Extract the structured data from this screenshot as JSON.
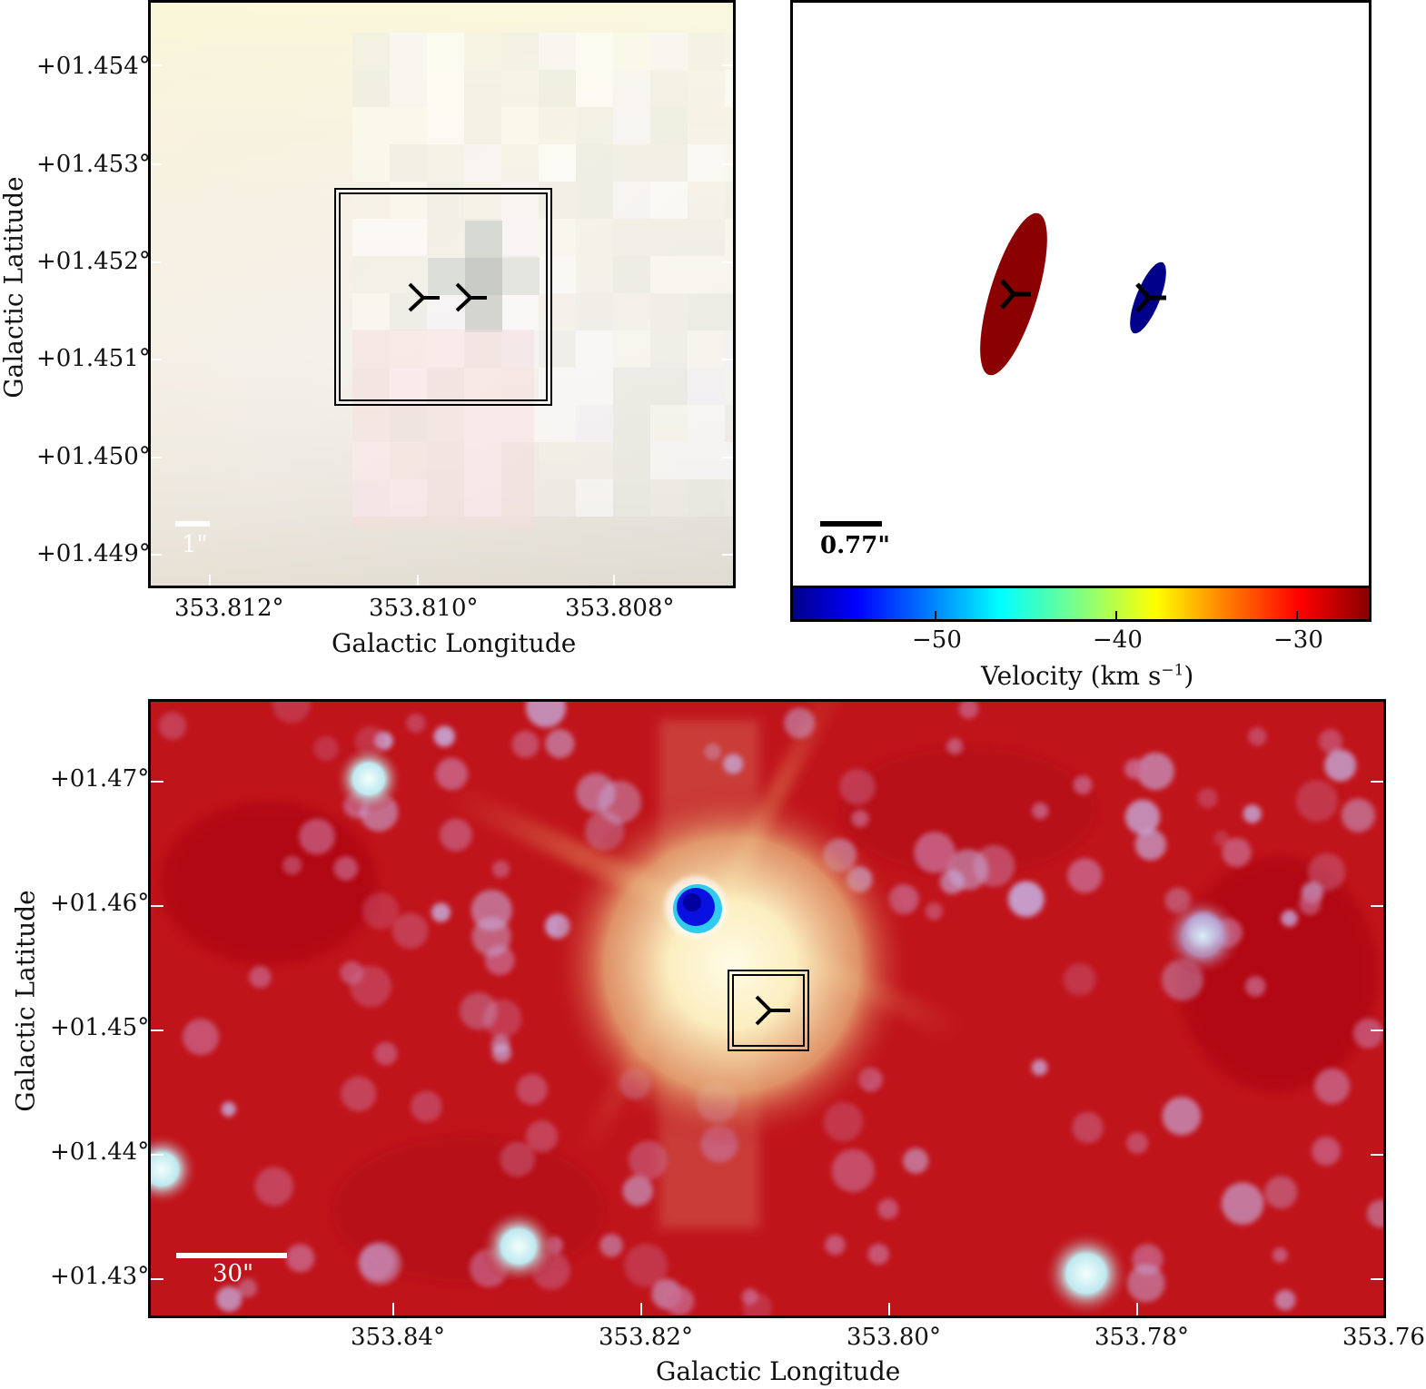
{
  "panel_a": {
    "xlabel": "Galactic Longitude",
    "ylabel": "Galactic Latitude",
    "x_ticks": [
      "353.812°",
      "353.810°",
      "353.808°"
    ],
    "y_ticks": [
      "+01.454°",
      "+01.453°",
      "+01.452°",
      "+01.451°",
      "+01.450°",
      "+01.449°"
    ],
    "scalebar_label": "1\"",
    "markers": 2
  },
  "panel_b": {
    "scalebar_label": "0.77\"",
    "colorbar_label": "Velocity (km s",
    "colorbar_sup": "−1",
    "colorbar_close": ")",
    "colorbar_ticks": [
      "−50",
      "−40",
      "−30"
    ],
    "colors": {
      "red_source": "#8b0000",
      "blue_source": "#00008b"
    }
  },
  "panel_c": {
    "xlabel": "Galactic Longitude",
    "ylabel": "Galactic Latitude",
    "x_ticks": [
      "353.84°",
      "353.82°",
      "353.80°",
      "353.78°",
      "353.76°"
    ],
    "y_ticks": [
      "+01.47°",
      "+01.46°",
      "+01.45°",
      "+01.44°",
      "+01.43°"
    ],
    "scalebar_label": "30\"",
    "colors": {
      "background": "#c0141b",
      "core": "#fff6d8",
      "blob": "#0a10e0"
    }
  }
}
